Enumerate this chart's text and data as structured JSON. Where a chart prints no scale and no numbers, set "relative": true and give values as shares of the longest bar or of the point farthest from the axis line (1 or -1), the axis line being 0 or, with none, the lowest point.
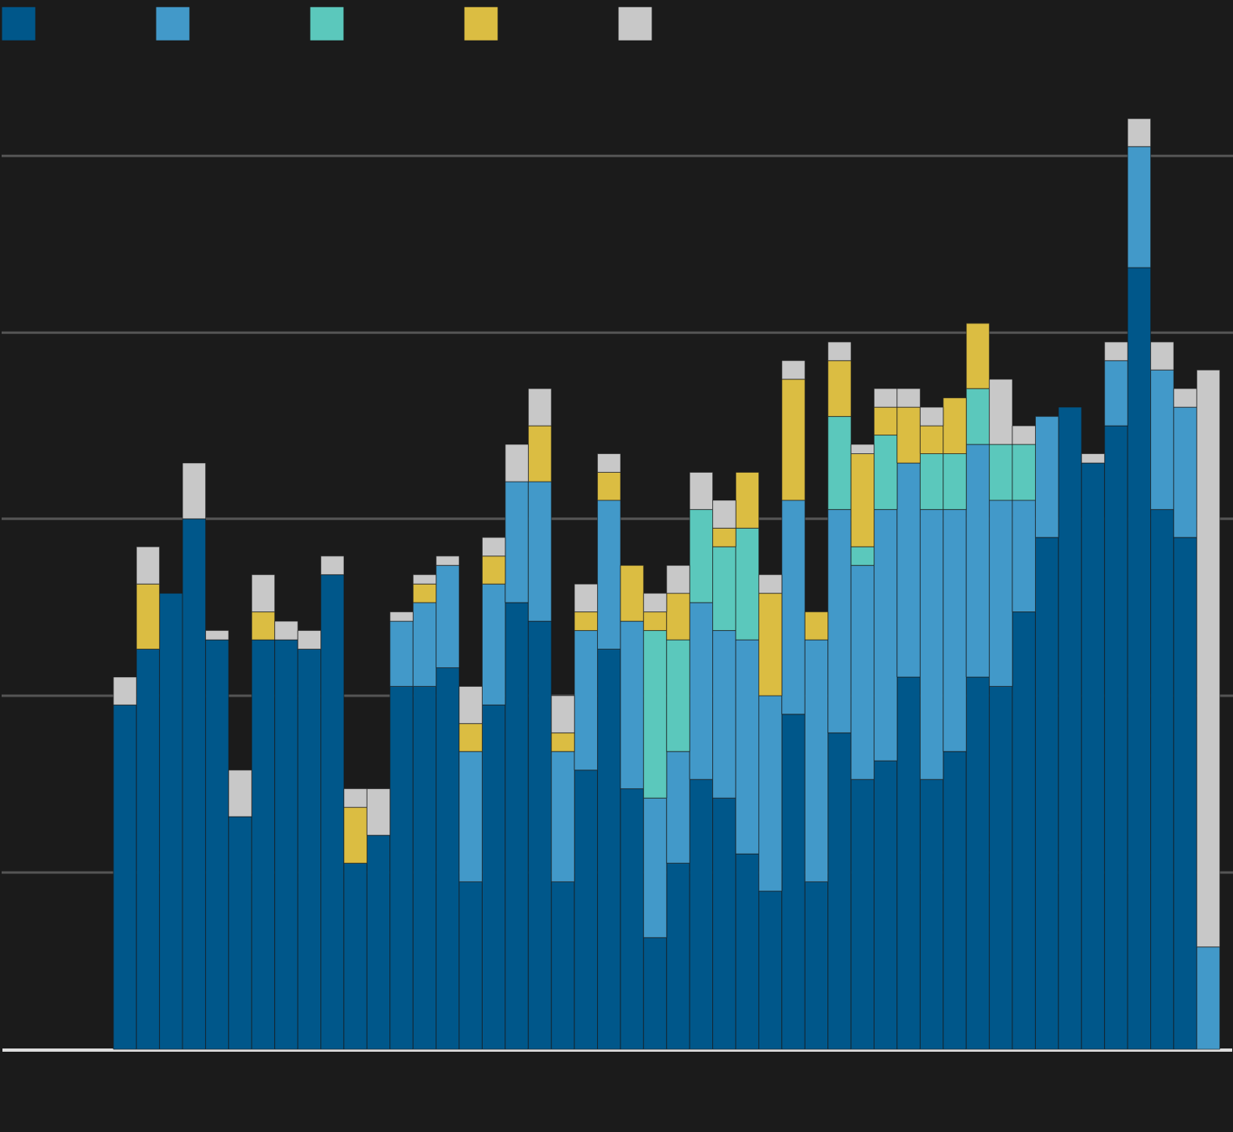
{
  "chart_data": {
    "type": "bar",
    "stacked": true,
    "relative": true,
    "tick_labels": false,
    "categories": [
      null,
      null,
      null,
      null,
      null,
      null,
      null,
      null,
      null,
      null,
      null,
      null,
      null,
      null,
      null,
      null,
      null,
      null,
      null,
      null,
      null,
      null,
      null,
      null,
      null,
      null,
      null,
      null,
      null,
      null,
      null,
      null,
      null,
      null,
      null,
      null,
      null,
      null,
      null,
      null,
      null,
      null,
      null,
      null,
      null,
      null,
      null,
      null
    ],
    "series": [
      {
        "color": "#00578a",
        "values": [
          0.37,
          0.43,
          0.49,
          0.57,
          0.44,
          0.25,
          0.44,
          0.44,
          0.43,
          0.51,
          0.2,
          0.23,
          0.39,
          0.39,
          0.41,
          0.18,
          0.37,
          0.48,
          0.46,
          0.18,
          0.3,
          0.43,
          0.28,
          0.12,
          0.2,
          0.29,
          0.27,
          0.21,
          0.17,
          0.36,
          0.18,
          0.34,
          0.29,
          0.31,
          0.4,
          0.29,
          0.32,
          0.4,
          0.39,
          0.47,
          0.55,
          0.69,
          0.63,
          0.67,
          0.84,
          0.58,
          0.55,
          0
        ]
      },
      {
        "color": "#4299c9",
        "values": [
          0,
          0,
          0,
          0,
          0,
          0,
          0,
          0,
          0,
          0,
          0,
          0,
          0.07,
          0.09,
          0.11,
          0.14,
          0.13,
          0.13,
          0.15,
          0.14,
          0.15,
          0.16,
          0.18,
          0.15,
          0.12,
          0.19,
          0.18,
          0.23,
          0.21,
          0.23,
          0.26,
          0.24,
          0.23,
          0.27,
          0.23,
          0.29,
          0.26,
          0.25,
          0.2,
          0.12,
          0.13,
          0,
          0,
          0.07,
          0.13,
          0.15,
          0.14,
          0.11
        ]
      },
      {
        "color": "#5bc8bc",
        "values": [
          0,
          0,
          0,
          0,
          0,
          0,
          0,
          0,
          0,
          0,
          0,
          0,
          0,
          0,
          0,
          0,
          0,
          0,
          0,
          0,
          0,
          0,
          0,
          0.18,
          0.12,
          0.1,
          0.09,
          0.12,
          0,
          0,
          0,
          0.1,
          0.02,
          0.08,
          0,
          0.06,
          0.06,
          0.06,
          0.06,
          0.06,
          0,
          0,
          0,
          0,
          0,
          0,
          0,
          0
        ]
      },
      {
        "color": "#dbbd42",
        "values": [
          0,
          0.07,
          0,
          0,
          0,
          0,
          0.03,
          0,
          0,
          0,
          0.06,
          0,
          0,
          0.02,
          0,
          0.03,
          0.03,
          0,
          0.06,
          0.02,
          0.02,
          0.03,
          0.06,
          0.02,
          0.05,
          0,
          0.02,
          0.06,
          0.11,
          0.13,
          0.03,
          0.06,
          0.1,
          0.03,
          0.06,
          0.03,
          0.06,
          0.07,
          0,
          0,
          0,
          0,
          0,
          0,
          0,
          0,
          0,
          0
        ]
      },
      {
        "color": "#c8c8c8",
        "values": [
          0.03,
          0.04,
          0,
          0.06,
          0.01,
          0.05,
          0.04,
          0.02,
          0.02,
          0.02,
          0.02,
          0.05,
          0.01,
          0.01,
          0.01,
          0.04,
          0.02,
          0.04,
          0.04,
          0.04,
          0.03,
          0.02,
          0,
          0.02,
          0.03,
          0.04,
          0.03,
          0,
          0.02,
          0.02,
          0,
          0.02,
          0.01,
          0.02,
          0.02,
          0.02,
          0,
          0,
          0.07,
          0.02,
          0,
          0,
          0.01,
          0.02,
          0.03,
          0.03,
          0.02,
          0.62
        ]
      }
    ],
    "ref_lines": [
      {
        "axis": "y",
        "value": 0.96,
        "color": "#555555"
      },
      {
        "axis": "y",
        "value": 0.77,
        "color": "#555555"
      },
      {
        "axis": "y",
        "value": 0.57,
        "color": "#555555"
      },
      {
        "axis": "y",
        "value": 0.38,
        "color": "#555555"
      },
      {
        "axis": "y",
        "value": 0.19,
        "color": "#555555"
      }
    ]
  }
}
